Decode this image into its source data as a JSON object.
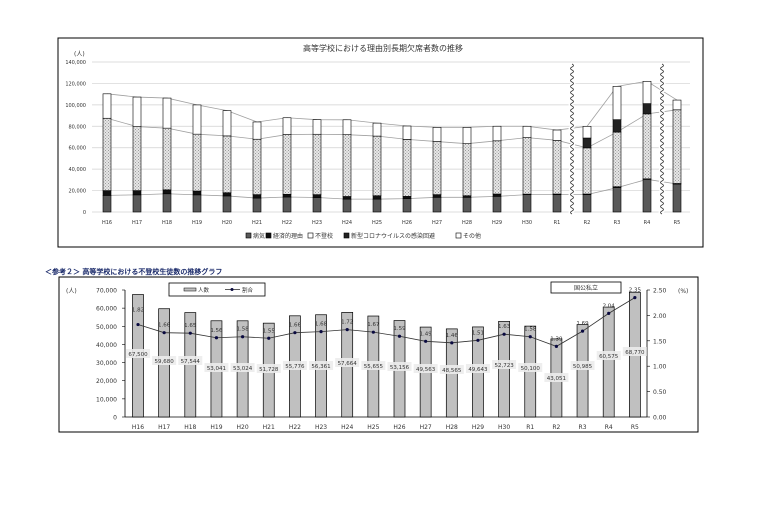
{
  "chart_data": [
    {
      "type": "bar",
      "stacked": true,
      "title": "高等学校における理由別長期欠席者数の推移",
      "ylabel": "(人)",
      "ylim": [
        0,
        140000
      ],
      "yticks": [
        0,
        20000,
        40000,
        60000,
        80000,
        100000,
        120000,
        140000
      ],
      "ytick_labels": [
        "0",
        "20,000",
        "40,000",
        "60,000",
        "80,000",
        "100,000",
        "120,000",
        "140,000"
      ],
      "grid": true,
      "legend_placement": "bottom",
      "categories": [
        "H16",
        "H17",
        "H18",
        "H19",
        "H20",
        "H21",
        "H22",
        "H23",
        "H24",
        "H25",
        "H26",
        "H27",
        "H28",
        "H29",
        "H30",
        "R1",
        "R2",
        "R3",
        "R4",
        "R5"
      ],
      "axis_breaks_after": [
        "R1",
        "R4"
      ],
      "series": [
        {
          "name": "病気",
          "color": "#595959",
          "values": [
            15500,
            16000,
            17000,
            16000,
            15000,
            13000,
            14000,
            13500,
            12000,
            12000,
            12500,
            13700,
            13700,
            14600,
            16200,
            16200,
            16200,
            22700,
            30500,
            26100
          ]
        },
        {
          "name": "経済的理由",
          "color": "#111111",
          "values": [
            4500,
            4000,
            3700,
            3600,
            3000,
            3200,
            2500,
            2700,
            2500,
            3200,
            2100,
            2500,
            1500,
            2200,
            500,
            600,
            600,
            900,
            500,
            500
          ]
        },
        {
          "name": "不登校",
          "color": "#d4d4d4",
          "values": [
            67500,
            59680,
            57544,
            53041,
            53024,
            51728,
            55776,
            56361,
            57664,
            55655,
            53156,
            49563,
            48565,
            49643,
            52723,
            50100,
            43051,
            50985,
            60575,
            68770
          ]
        },
        {
          "name": "新型コロナウイルスの感染回避",
          "color": "#222222",
          "values": [
            0,
            0,
            0,
            0,
            0,
            0,
            0,
            0,
            0,
            0,
            0,
            0,
            0,
            0,
            0,
            0,
            9200,
            11600,
            9600,
            0
          ]
        },
        {
          "name": "その他",
          "color": "#ffffff",
          "values": [
            22800,
            27600,
            28100,
            27300,
            23600,
            16100,
            15700,
            13600,
            13900,
            12100,
            12500,
            13200,
            15200,
            13600,
            10600,
            9600,
            10900,
            31100,
            20800,
            9100
          ]
        }
      ]
    },
    {
      "type": "bar+line",
      "heading": "＜参考２＞ 高等学校における不登校生徒数の推移グラフ",
      "ylabel": "(人)",
      "ylabel_right": "(%)",
      "ylim": [
        0,
        70000
      ],
      "ylim_right": [
        0,
        2.5
      ],
      "yticks": [
        "0",
        "10,000",
        "20,000",
        "30,000",
        "40,000",
        "50,000",
        "60,000",
        "70,000"
      ],
      "yticks_right": [
        "0.00",
        "0.50",
        "1.00",
        "1.50",
        "2.00",
        "2.50"
      ],
      "legend_placement": "top",
      "scope_label": "国公私立",
      "categories": [
        "H16",
        "H17",
        "H18",
        "H19",
        "H20",
        "H21",
        "H22",
        "H23",
        "H24",
        "H25",
        "H26",
        "H27",
        "H28",
        "H29",
        "H30",
        "R1",
        "R2",
        "R3",
        "R4",
        "R5"
      ],
      "series": [
        {
          "name": "人数",
          "type": "bar",
          "color": "#c0c0c0",
          "values": [
            67500,
            59680,
            57544,
            53041,
            53024,
            51728,
            55776,
            56361,
            57664,
            55655,
            53156,
            49563,
            48565,
            49643,
            52723,
            50100,
            43051,
            50985,
            60575,
            68770
          ],
          "labels": [
            "67,500",
            "59,680",
            "57,544",
            "53,041",
            "53,024",
            "51,728",
            "55,776",
            "56,361",
            "57,664",
            "55,655",
            "53,156",
            "49,563",
            "48,565",
            "49,643",
            "52,723",
            "50,100",
            "43,051",
            "50,985",
            "60,575",
            "68,770"
          ]
        },
        {
          "name": "割合",
          "type": "line",
          "color": "#0a0a40",
          "values": [
            1.82,
            1.66,
            1.65,
            1.56,
            1.58,
            1.55,
            1.66,
            1.68,
            1.72,
            1.67,
            1.59,
            1.49,
            1.46,
            1.51,
            1.63,
            1.58,
            1.39,
            1.69,
            2.04,
            2.35
          ],
          "labels": [
            "1.82",
            "1.66",
            "1.65",
            "1.56",
            "1.58",
            "1.55",
            "1.66",
            "1.68",
            "1.72",
            "1.67",
            "1.59",
            "1.49",
            "1.46",
            "1.51",
            "1.63",
            "1.58",
            "1.39",
            "1.69",
            "2.04",
            "2.35"
          ]
        }
      ]
    }
  ]
}
